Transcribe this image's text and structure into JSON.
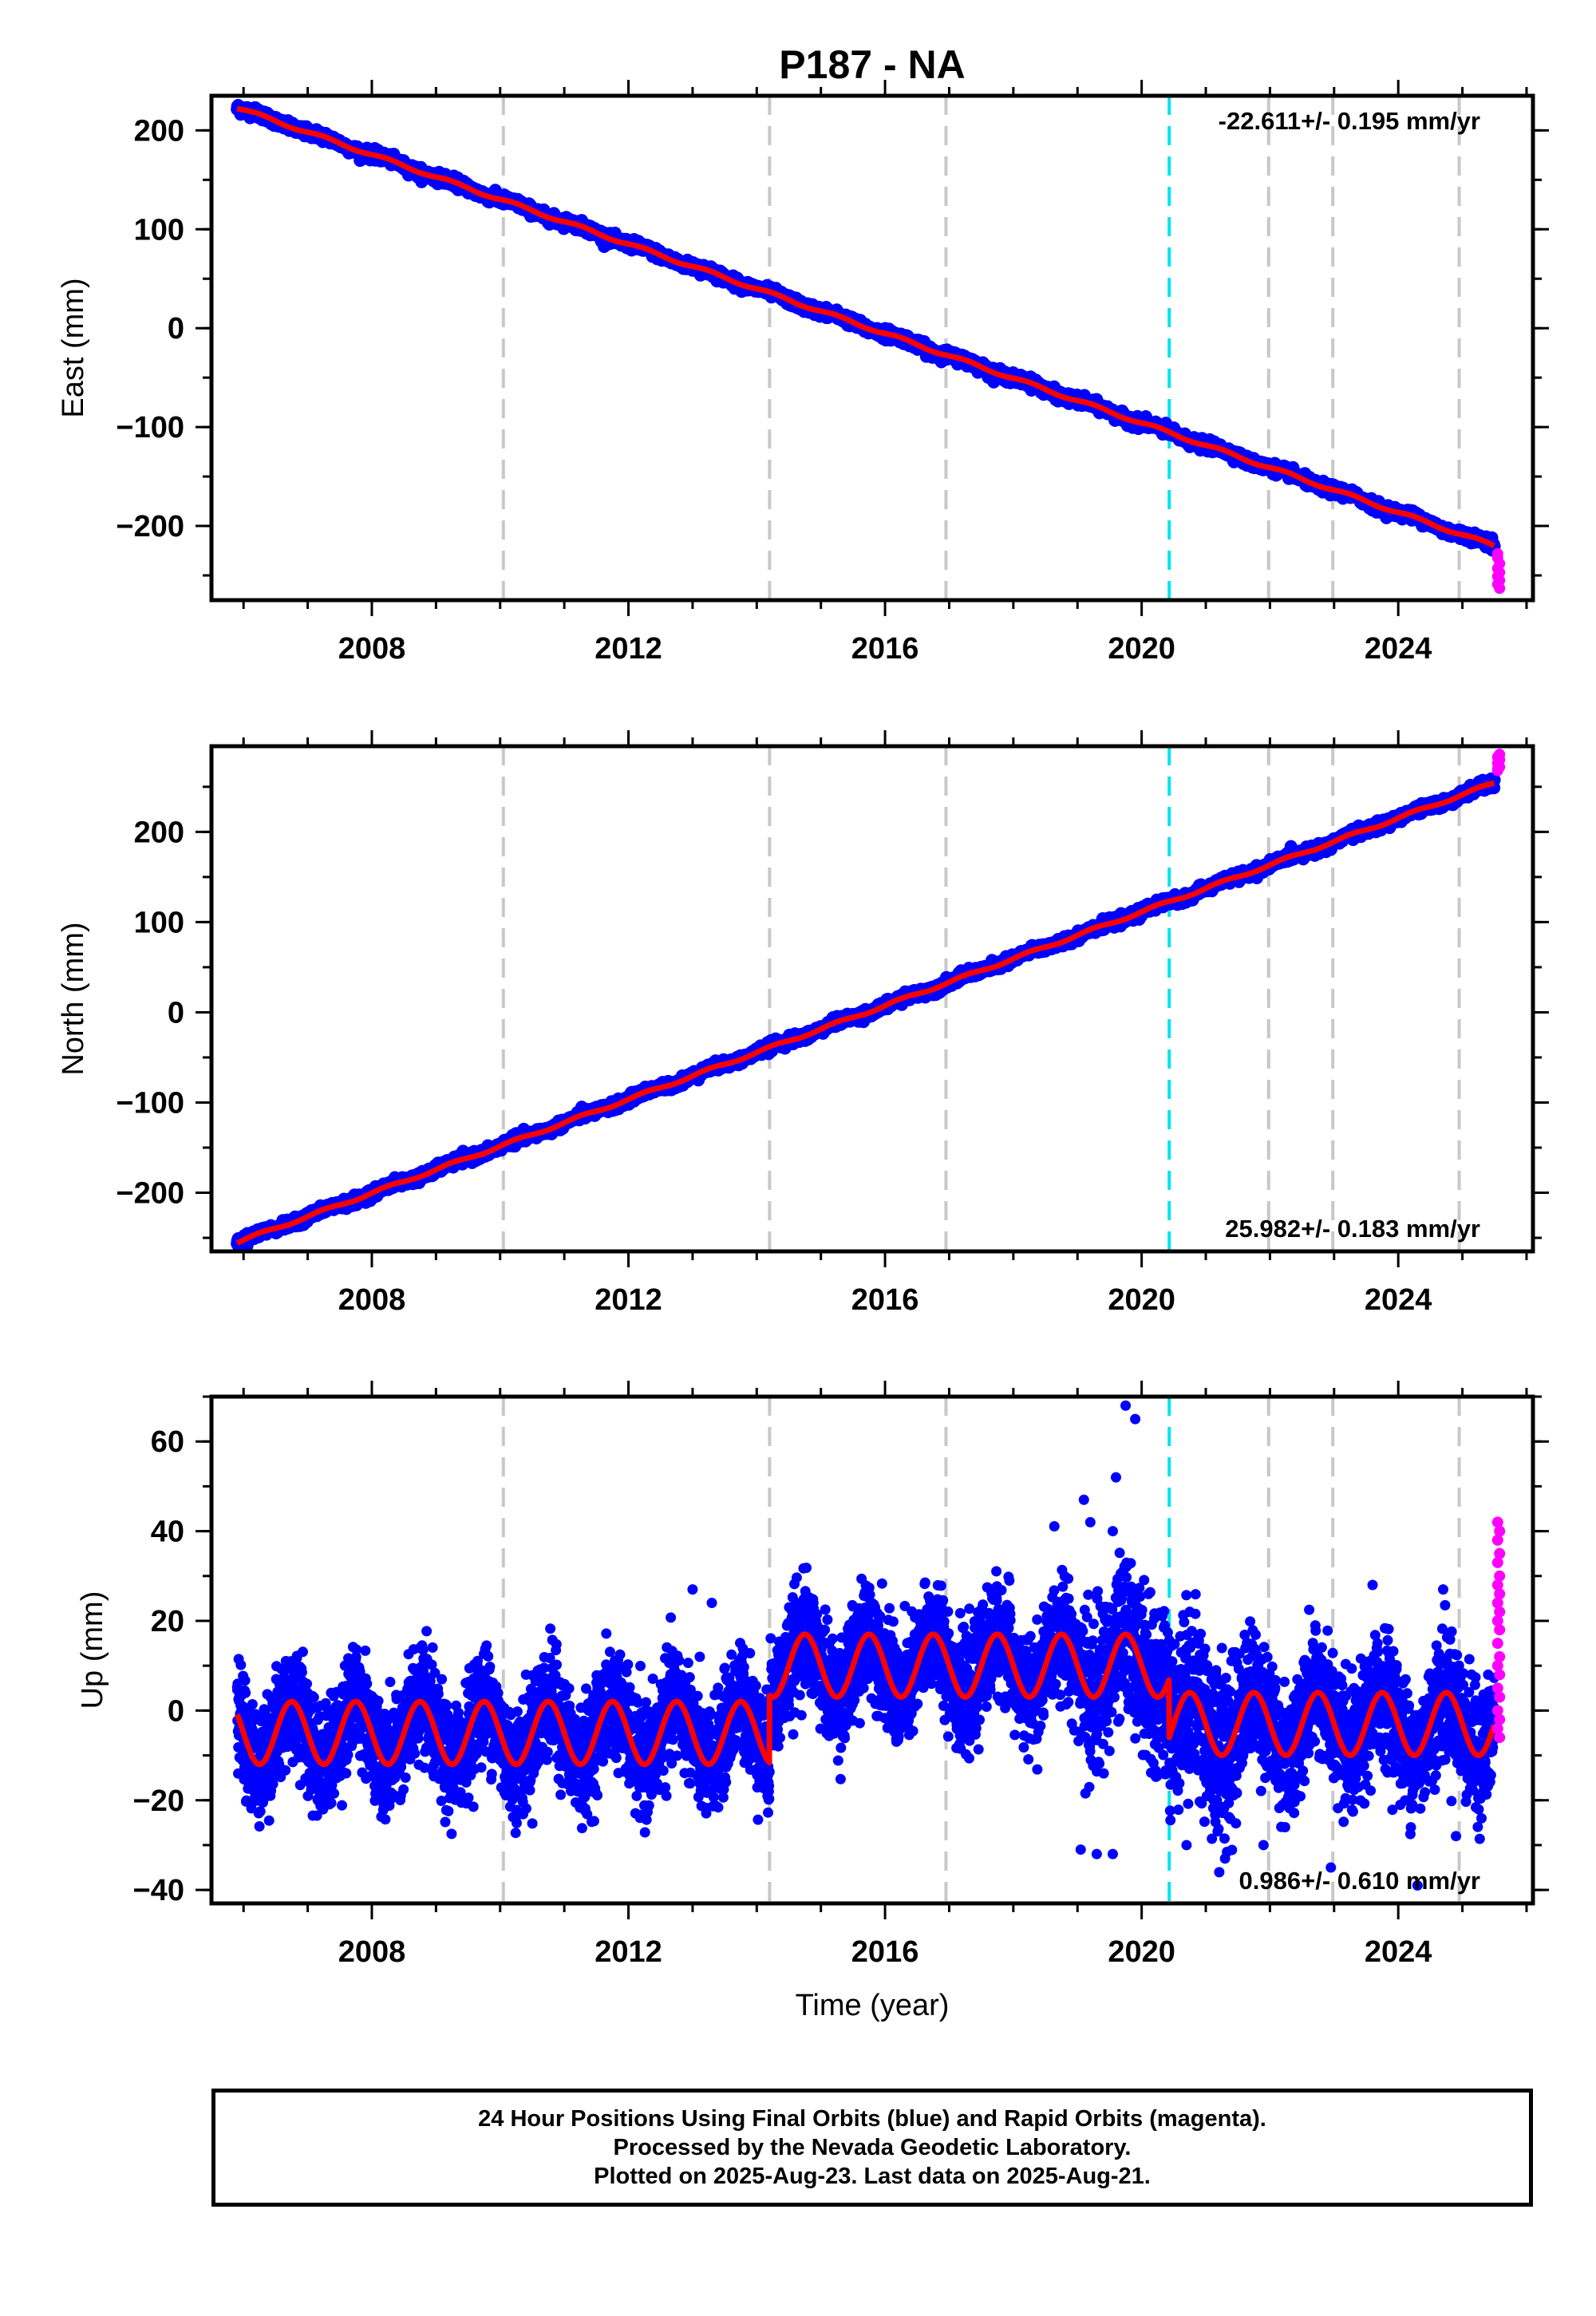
{
  "title": "P187 - NA",
  "colors": {
    "final_orbits": "#0000ff",
    "rapid_orbits": "#ff00ff",
    "model_fit": "#ff0000",
    "event_marker": "#c8c8c8",
    "reference_marker": "#00e5ee"
  },
  "caption": {
    "line1": "24 Hour Positions Using Final Orbits (blue) and Rapid Orbits (magenta).",
    "line2": "Processed by the Nevada Geodetic Laboratory.",
    "line3": "Plotted on 2025-Aug-23. Last data on 2025-Aug-21."
  },
  "chart_data": [
    {
      "type": "scatter",
      "component": "east",
      "ylabel": "East (mm)",
      "xlabel": "",
      "rate_label": "-22.611+/- 0.195 mm/yr",
      "rate_label_position": "top-right",
      "xlim": [
        2005.5,
        2026.1
      ],
      "ylim": [
        -275,
        235
      ],
      "x_ticks": [
        2008,
        2012,
        2016,
        2020,
        2024
      ],
      "y_ticks": [
        -200,
        -100,
        0,
        100,
        200
      ],
      "event_lines": [
        2010.05,
        2014.2,
        2016.95,
        2021.98,
        2022.98,
        2024.95
      ],
      "reference_line": 2020.43,
      "start": 2005.9,
      "end": 2025.5,
      "intercept_at_start": 223,
      "rate": -22.611,
      "seasonal_amplitude": 1.5,
      "scatter_mm": 2.5,
      "rapid_points": [
        -232,
        -238,
        -243,
        -247,
        -251,
        -255,
        -259,
        -263,
        -228
      ],
      "series": [
        {
          "name": "Final Orbits",
          "color": "#0000ff"
        },
        {
          "name": "Rapid Orbits",
          "color": "#ff00ff"
        },
        {
          "name": "Model",
          "color": "#ff0000"
        }
      ]
    },
    {
      "type": "scatter",
      "component": "north",
      "ylabel": "North (mm)",
      "xlabel": "",
      "rate_label": "25.982+/- 0.183 mm/yr",
      "rate_label_position": "bottom-right",
      "xlim": [
        2005.5,
        2026.1
      ],
      "ylim": [
        -265,
        295
      ],
      "x_ticks": [
        2008,
        2012,
        2016,
        2020,
        2024
      ],
      "y_ticks": [
        -200,
        -100,
        0,
        100,
        200
      ],
      "event_lines": [
        2010.05,
        2014.2,
        2016.95,
        2021.98,
        2022.98,
        2024.95
      ],
      "reference_line": 2020.43,
      "start": 2005.9,
      "end": 2025.5,
      "intercept_at_start": -255,
      "rate": 25.982,
      "seasonal_amplitude": 1.5,
      "scatter_mm": 2.5,
      "rapid_points": [
        268,
        272,
        276,
        280,
        283,
        286,
        270
      ],
      "series": [
        {
          "name": "Final Orbits",
          "color": "#0000ff"
        },
        {
          "name": "Rapid Orbits",
          "color": "#ff00ff"
        },
        {
          "name": "Model",
          "color": "#ff0000"
        }
      ]
    },
    {
      "type": "scatter",
      "component": "up",
      "ylabel": "Up (mm)",
      "xlabel": "Time (year)",
      "rate_label": "0.986+/- 0.610 mm/yr",
      "rate_label_position": "bottom-right",
      "xlim": [
        2005.5,
        2026.1
      ],
      "ylim": [
        -43,
        70
      ],
      "x_ticks": [
        2008,
        2012,
        2016,
        2020,
        2024
      ],
      "y_ticks": [
        -40,
        -20,
        0,
        20,
        40,
        60
      ],
      "event_lines": [
        2010.05,
        2014.2,
        2016.95,
        2021.98,
        2022.98,
        2024.95
      ],
      "reference_line": 2020.43,
      "start": 2005.9,
      "end": 2025.5,
      "segments": [
        {
          "from": 2005.9,
          "to": 2014.2,
          "offset": -5
        },
        {
          "from": 2014.2,
          "to": 2020.43,
          "offset": 10
        },
        {
          "from": 2020.43,
          "to": 2025.5,
          "offset": -3
        }
      ],
      "seasonal_amplitude": 7,
      "scatter_mm": 6,
      "outliers": [
        {
          "x": 2019.75,
          "y": 68
        },
        {
          "x": 2019.9,
          "y": 65
        },
        {
          "x": 2019.6,
          "y": 52
        },
        {
          "x": 2019.1,
          "y": 47
        },
        {
          "x": 2019.2,
          "y": 42
        },
        {
          "x": 2019.55,
          "y": 40
        },
        {
          "x": 2013.0,
          "y": 27
        },
        {
          "x": 2013.3,
          "y": 24
        },
        {
          "x": 2019.3,
          "y": -32
        },
        {
          "x": 2019.55,
          "y": -32
        },
        {
          "x": 2019.05,
          "y": -31
        },
        {
          "x": 2020.7,
          "y": -30
        },
        {
          "x": 2021.3,
          "y": -33
        },
        {
          "x": 2021.9,
          "y": -30
        },
        {
          "x": 2022.95,
          "y": -35
        },
        {
          "x": 2024.3,
          "y": -39
        },
        {
          "x": 2024.9,
          "y": -28
        },
        {
          "x": 2023.6,
          "y": 28
        },
        {
          "x": 2024.7,
          "y": 27
        }
      ],
      "rapid_points": [
        42,
        40,
        38,
        35,
        33,
        30,
        28,
        26,
        24,
        22,
        20,
        18,
        15,
        12,
        10,
        8,
        5,
        3,
        0,
        -2,
        -4,
        -6
      ],
      "series": [
        {
          "name": "Final Orbits",
          "color": "#0000ff"
        },
        {
          "name": "Rapid Orbits",
          "color": "#ff00ff"
        },
        {
          "name": "Model",
          "color": "#ff0000"
        }
      ]
    }
  ]
}
